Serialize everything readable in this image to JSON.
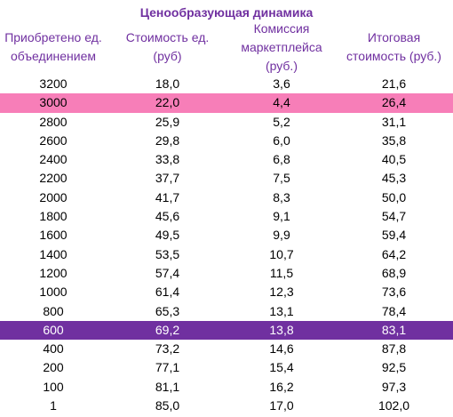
{
  "title": "Ценообразующая динамика",
  "headers": [
    "Приобретено ед. объединением",
    "Стоимость ед. (руб)",
    "Комиссия маркетплейса (руб.)",
    "Итоговая стоимость (руб.)"
  ],
  "header_lines": [
    [
      "Приобретено ед.",
      "объединением"
    ],
    [
      "Стоимость ед.",
      "(руб)"
    ],
    [
      "Комиссия",
      "маркетплейса",
      "(руб.)"
    ],
    [
      "Итоговая",
      "стоимость (руб.)"
    ]
  ],
  "rows": [
    {
      "qty": "3200",
      "unit": "18,0",
      "fee": "3,6",
      "total": "21,6",
      "highlight": ""
    },
    {
      "qty": "3000",
      "unit": "22,0",
      "fee": "4,4",
      "total": "26,4",
      "highlight": "pink"
    },
    {
      "qty": "2800",
      "unit": "25,9",
      "fee": "5,2",
      "total": "31,1",
      "highlight": ""
    },
    {
      "qty": "2600",
      "unit": "29,8",
      "fee": "6,0",
      "total": "35,8",
      "highlight": ""
    },
    {
      "qty": "2400",
      "unit": "33,8",
      "fee": "6,8",
      "total": "40,5",
      "highlight": ""
    },
    {
      "qty": "2200",
      "unit": "37,7",
      "fee": "7,5",
      "total": "45,3",
      "highlight": ""
    },
    {
      "qty": "2000",
      "unit": "41,7",
      "fee": "8,3",
      "total": "50,0",
      "highlight": ""
    },
    {
      "qty": "1800",
      "unit": "45,6",
      "fee": "9,1",
      "total": "54,7",
      "highlight": ""
    },
    {
      "qty": "1600",
      "unit": "49,5",
      "fee": "9,9",
      "total": "59,4",
      "highlight": ""
    },
    {
      "qty": "1400",
      "unit": "53,5",
      "fee": "10,7",
      "total": "64,2",
      "highlight": ""
    },
    {
      "qty": "1200",
      "unit": "57,4",
      "fee": "11,5",
      "total": "68,9",
      "highlight": ""
    },
    {
      "qty": "1000",
      "unit": "61,4",
      "fee": "12,3",
      "total": "73,6",
      "highlight": ""
    },
    {
      "qty": "800",
      "unit": "65,3",
      "fee": "13,1",
      "total": "78,4",
      "highlight": ""
    },
    {
      "qty": "600",
      "unit": "69,2",
      "fee": "13,8",
      "total": "83,1",
      "highlight": "purple"
    },
    {
      "qty": "400",
      "unit": "73,2",
      "fee": "14,6",
      "total": "87,8",
      "highlight": ""
    },
    {
      "qty": "200",
      "unit": "77,1",
      "fee": "15,4",
      "total": "92,5",
      "highlight": ""
    },
    {
      "qty": "100",
      "unit": "81,1",
      "fee": "16,2",
      "total": "97,3",
      "highlight": ""
    },
    {
      "qty": "1",
      "unit": "85,0",
      "fee": "17,0",
      "total": "102,0",
      "highlight": ""
    }
  ],
  "colors": {
    "accent": "#7030a0",
    "pink_highlight": "#f77eb8",
    "purple_highlight": "#7030a0"
  }
}
